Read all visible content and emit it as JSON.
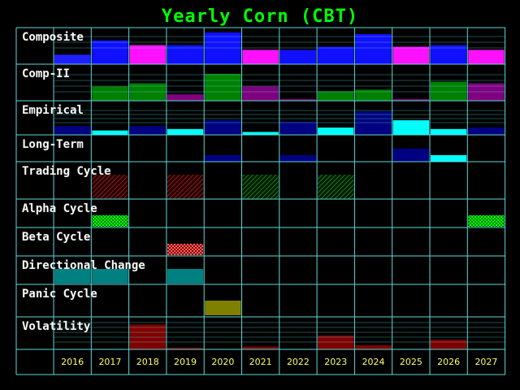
{
  "title": "Yearly Corn (CBT)",
  "colors": {
    "background": "#000000",
    "grid": "#5fd7d7",
    "title": "#00ff00",
    "year_label": "#ffff66",
    "row_label": "#ffffff"
  },
  "chart_data": {
    "type": "bar",
    "categories": [
      "2016",
      "2017",
      "2018",
      "2019",
      "2020",
      "2021",
      "2022",
      "2023",
      "2024",
      "2025",
      "2026",
      "2027"
    ],
    "rows": [
      {
        "label": "Composite",
        "style": "bars",
        "values": [
          0.3,
          0.75,
          0.6,
          0.6,
          1.0,
          0.45,
          0.45,
          0.55,
          0.95,
          0.55,
          0.6,
          0.45
        ],
        "colors": [
          "#2020ff",
          "#1010ff",
          "#ff10ff",
          "#1010ff",
          "#1010ff",
          "#ff10ff",
          "#1010ff",
          "#1010ff",
          "#1010ff",
          "#ff10ff",
          "#1010ff",
          "#ff10ff"
        ]
      },
      {
        "label": "Comp-II",
        "style": "bars",
        "values": [
          0,
          0.45,
          0.55,
          0.2,
          0.85,
          0.45,
          0.05,
          0.3,
          0.35,
          0.05,
          0.6,
          0.55
        ],
        "colors": [
          "#008000",
          "#008000",
          "#008000",
          "#800080",
          "#008000",
          "#800080",
          "#800080",
          "#008000",
          "#008000",
          "#800080",
          "#008000",
          "#800080"
        ]
      },
      {
        "label": "Empirical",
        "style": "bars",
        "values": [
          0.3,
          0.15,
          0.3,
          0.2,
          0.5,
          0.1,
          0.45,
          0.25,
          0.8,
          0.5,
          0.2,
          0.25
        ],
        "colors": [
          "#000080",
          "#00ffff",
          "#000080",
          "#00ffff",
          "#000080",
          "#00ffff",
          "#000080",
          "#00ffff",
          "#000080",
          "#00ffff",
          "#00ffff",
          "#000080"
        ]
      },
      {
        "label": "Long-Term",
        "style": "bars",
        "values": [
          0,
          0,
          0,
          0,
          0.3,
          0,
          0.3,
          0,
          0,
          0.6,
          0.3,
          0
        ],
        "colors": [
          "#000080",
          "#000080",
          "#000080",
          "#000080",
          "#000080",
          "#000080",
          "#000080",
          "#000080",
          "#000080",
          "#000080",
          "#00ffff",
          "#000080"
        ]
      },
      {
        "label": "Trading Cycle",
        "style": "pattern",
        "values": [
          0,
          1,
          0,
          1,
          0,
          1,
          0,
          1,
          0,
          0,
          0,
          0
        ],
        "colors": [
          "#ff0000",
          "#ff0000",
          "#ff0000",
          "#ff0000",
          "#00c000",
          "#00c000",
          "#00c000",
          "#00c000",
          "#00c000",
          "#00c000",
          "#00c000",
          "#00c000"
        ]
      },
      {
        "label": "Alpha Cycle",
        "style": "pattern",
        "values": [
          0,
          1,
          0,
          0,
          0,
          0,
          0,
          0,
          0,
          0,
          0,
          1
        ],
        "colors": [
          "#00ff00",
          "#00ff00",
          "#00ff00",
          "#00ff00",
          "#00ff00",
          "#00ff00",
          "#00ff00",
          "#00ff00",
          "#00ff00",
          "#00ff00",
          "#00ff00",
          "#00ff00"
        ]
      },
      {
        "label": "Beta Cycle",
        "style": "pattern",
        "values": [
          0,
          0,
          0,
          1,
          0,
          0,
          0,
          0,
          0,
          0,
          0,
          0
        ],
        "colors": [
          "#ff4040",
          "#ff4040",
          "#ff4040",
          "#ff4040",
          "#ff4040",
          "#ff4040",
          "#ff4040",
          "#ff4040",
          "#ff4040",
          "#ff4040",
          "#ff4040",
          "#ff4040"
        ]
      },
      {
        "label": "Directional Change",
        "style": "bars",
        "values": [
          1,
          1,
          0,
          1,
          0,
          0,
          0,
          0,
          0,
          0,
          0,
          0
        ],
        "colors": [
          "#008080",
          "#008080",
          "#008080",
          "#008080",
          "#008080",
          "#008080",
          "#008080",
          "#008080",
          "#008080",
          "#008080",
          "#008080",
          "#008080"
        ]
      },
      {
        "label": "Panic Cycle",
        "style": "bars",
        "values": [
          0,
          0,
          0,
          0,
          1,
          0,
          0,
          0,
          0,
          0,
          0,
          0
        ],
        "colors": [
          "#808000",
          "#808000",
          "#808000",
          "#808000",
          "#808000",
          "#808000",
          "#808000",
          "#808000",
          "#808000",
          "#808000",
          "#808000",
          "#808000"
        ]
      },
      {
        "label": "Volatility",
        "style": "bars",
        "values": [
          0,
          0,
          0.9,
          0.05,
          0,
          0.1,
          0,
          0.5,
          0.15,
          0,
          0.35,
          0
        ],
        "colors": [
          "#800000",
          "#800000",
          "#800000",
          "#800000",
          "#800000",
          "#800000",
          "#800000",
          "#800000",
          "#800000",
          "#800000",
          "#800000",
          "#800000"
        ]
      }
    ]
  }
}
